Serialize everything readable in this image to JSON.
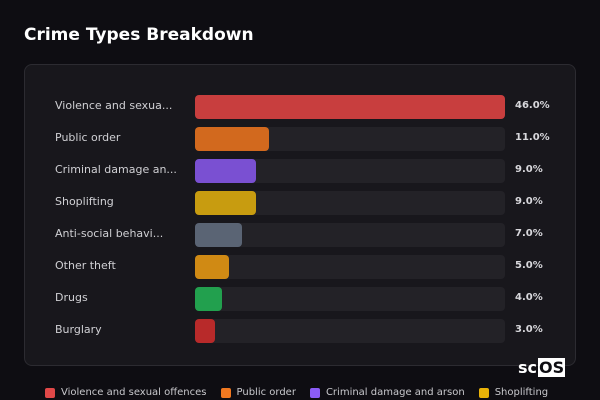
{
  "chart_data": {
    "type": "bar",
    "orientation": "horizontal",
    "title": "Crime Types Breakdown",
    "categories": [
      "Violence and sexual offences",
      "Public order",
      "Criminal damage and arson",
      "Shoplifting",
      "Anti-social behaviour",
      "Other theft",
      "Drugs",
      "Burglary"
    ],
    "display_labels": [
      "Violence and sexua...",
      "Public order",
      "Criminal damage an...",
      "Shoplifting",
      "Anti-social behavi...",
      "Other theft",
      "Drugs",
      "Burglary"
    ],
    "values": [
      46.0,
      11.0,
      9.0,
      9.0,
      7.0,
      5.0,
      4.0,
      3.0
    ],
    "value_labels": [
      "46.0%",
      "11.0%",
      "9.0%",
      "9.0%",
      "7.0%",
      "5.0%",
      "4.0%",
      "3.0%"
    ],
    "colors": [
      "#c83e3e",
      "#d2691e",
      "#7a50d2",
      "#c89c10",
      "#5a6474",
      "#d08a14",
      "#22a04e",
      "#b82a2a"
    ],
    "legend": [
      {
        "label": "Violence and sexual offences",
        "color": "#e04848"
      },
      {
        "label": "Public order",
        "color": "#f07820"
      },
      {
        "label": "Criminal damage and arson",
        "color": "#8b5cf6"
      },
      {
        "label": "Shoplifting",
        "color": "#eab308"
      }
    ],
    "legend_position": "bottom"
  },
  "logo": {
    "text_a": "sc",
    "text_b": "OS",
    "mark": "®"
  }
}
